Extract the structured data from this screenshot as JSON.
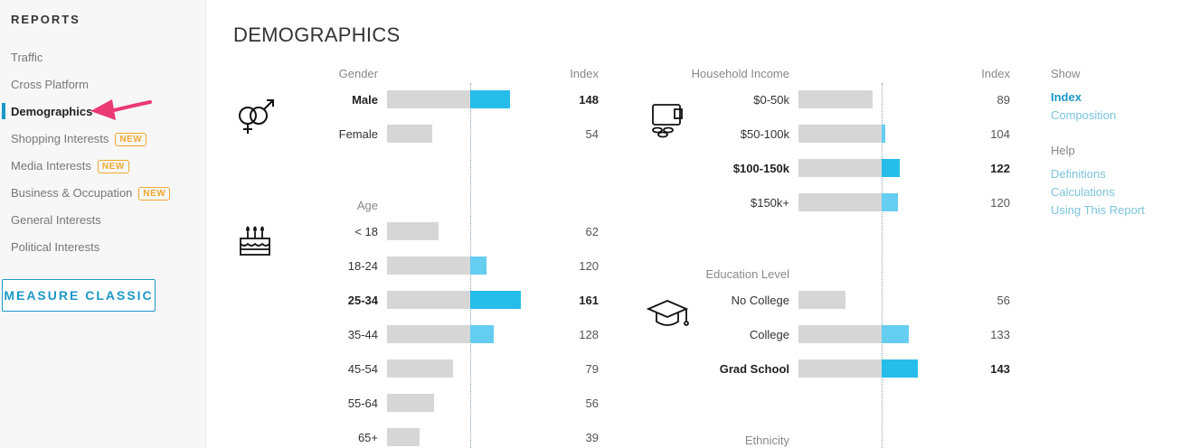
{
  "sidebar": {
    "heading": "REPORTS",
    "items": [
      {
        "label": "Traffic"
      },
      {
        "label": "Cross Platform"
      },
      {
        "label": "Demographics",
        "active": true
      },
      {
        "label": "Shopping Interests",
        "badge": "NEW"
      },
      {
        "label": "Media Interests",
        "badge": "NEW"
      },
      {
        "label": "Business & Occupation",
        "badge": "NEW"
      },
      {
        "label": "General Interests"
      },
      {
        "label": "Political Interests"
      }
    ],
    "measure_button": "MEASURE CLASSIC"
  },
  "page": {
    "title": "DEMOGRAPHICS"
  },
  "colors": {
    "accent": "#1c98c9",
    "bar_gray": "#d6d6d6",
    "bar_blue_strong": "#26bdea",
    "bar_blue_light": "#64cdf0",
    "badge": "#f0a830"
  },
  "sections": {
    "gender": {
      "label": "Gender",
      "index_header": "Index",
      "icon": "gender-icon",
      "rows": [
        {
          "label": "Male",
          "index": "148",
          "bold": true
        },
        {
          "label": "Female",
          "index": "54",
          "bold": false
        }
      ]
    },
    "age": {
      "label": "Age",
      "icon": "birthday-cake-icon",
      "rows": [
        {
          "label": "< 18",
          "index": "62",
          "bold": false
        },
        {
          "label": "18-24",
          "index": "120",
          "bold": false
        },
        {
          "label": "25-34",
          "index": "161",
          "bold": true
        },
        {
          "label": "35-44",
          "index": "128",
          "bold": false
        },
        {
          "label": "45-54",
          "index": "79",
          "bold": false
        },
        {
          "label": "55-64",
          "index": "56",
          "bold": false
        },
        {
          "label": "65+",
          "index": "39",
          "bold": false
        }
      ]
    },
    "income": {
      "label": "Household Income",
      "index_header": "Index",
      "icon": "wallet-coins-icon",
      "rows": [
        {
          "label": "$0-50k",
          "index": "89",
          "bold": false
        },
        {
          "label": "$50-100k",
          "index": "104",
          "bold": false
        },
        {
          "label": "$100-150k",
          "index": "122",
          "bold": true
        },
        {
          "label": "$150k+",
          "index": "120",
          "bold": false
        }
      ]
    },
    "education": {
      "label": "Education Level",
      "icon": "graduation-cap-icon",
      "rows": [
        {
          "label": "No College",
          "index": "56",
          "bold": false
        },
        {
          "label": "College",
          "index": "133",
          "bold": false
        },
        {
          "label": "Grad School",
          "index": "143",
          "bold": true
        }
      ]
    },
    "ethnicity": {
      "label": "Ethnicity"
    }
  },
  "show_panel": {
    "heading": "Show",
    "options": [
      {
        "label": "Index",
        "active": true
      },
      {
        "label": "Composition",
        "active": false
      }
    ],
    "help_heading": "Help",
    "help_links": [
      {
        "label": "Definitions"
      },
      {
        "label": "Calculations"
      },
      {
        "label": "Using This Report"
      }
    ]
  }
}
